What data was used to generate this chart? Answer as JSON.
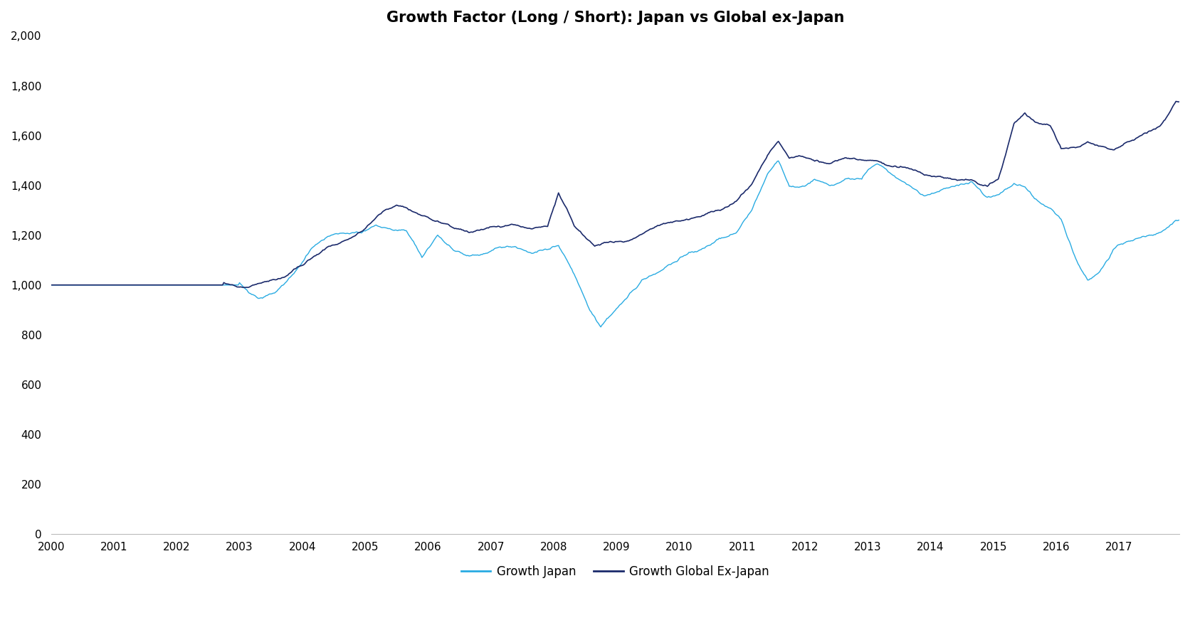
{
  "title": "Growth Factor (Long / Short): Japan vs Global ex-Japan",
  "title_fontsize": 15,
  "title_fontweight": "bold",
  "color_japan": "#29ABE2",
  "color_global": "#1B2A6B",
  "linewidth_japan": 1.0,
  "linewidth_global": 1.2,
  "ylim": [
    0,
    2000
  ],
  "yticks": [
    0,
    200,
    400,
    600,
    800,
    1000,
    1200,
    1400,
    1600,
    1800,
    2000
  ],
  "xtick_years": [
    2000,
    2001,
    2002,
    2003,
    2004,
    2005,
    2006,
    2007,
    2008,
    2009,
    2010,
    2011,
    2012,
    2013,
    2014,
    2015,
    2016,
    2017
  ],
  "legend_japan": "Growth Japan",
  "legend_global": "Growth Global Ex-Japan",
  "background_color": "#ffffff",
  "figsize": [
    16.72,
    8.86
  ],
  "dpi": 100
}
